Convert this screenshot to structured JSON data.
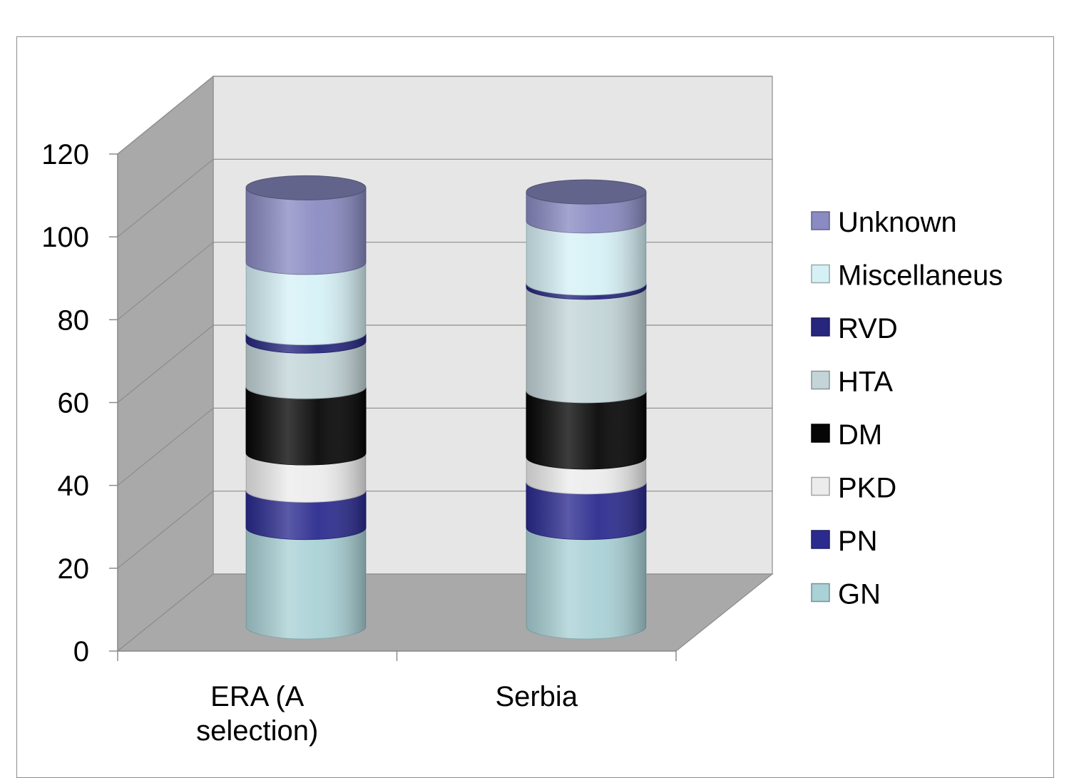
{
  "chart_data": {
    "type": "bar",
    "stacked": true,
    "style": "3d-cylinder",
    "categories": [
      "ERA (A selection)",
      "Serbia"
    ],
    "category_lines": [
      [
        "ERA (A",
        "selection)"
      ],
      [
        "Serbia"
      ]
    ],
    "series": [
      {
        "name": "GN",
        "color": "#a9d1d6",
        "values": [
          24,
          24
        ]
      },
      {
        "name": "PN",
        "color": "#2b2b8f",
        "values": [
          9,
          11
        ]
      },
      {
        "name": "PKD",
        "color": "#ececec",
        "values": [
          9,
          6
        ]
      },
      {
        "name": "DM",
        "color": "#060606",
        "values": [
          16,
          16
        ]
      },
      {
        "name": "HTA",
        "color": "#c3d5d8",
        "values": [
          11,
          25
        ]
      },
      {
        "name": "RVD",
        "color": "#26267f",
        "values": [
          2,
          1
        ]
      },
      {
        "name": "Miscellaneus",
        "color": "#d6f1f6",
        "values": [
          17,
          15
        ]
      },
      {
        "name": "Unknown",
        "color": "#8a8bc2",
        "values": [
          18,
          7
        ]
      }
    ],
    "ylim": [
      0,
      120
    ],
    "yticks": [
      0,
      20,
      40,
      60,
      80,
      100,
      120
    ],
    "grid": true,
    "legend_position": "right",
    "title": "",
    "xlabel": "",
    "ylabel": ""
  }
}
